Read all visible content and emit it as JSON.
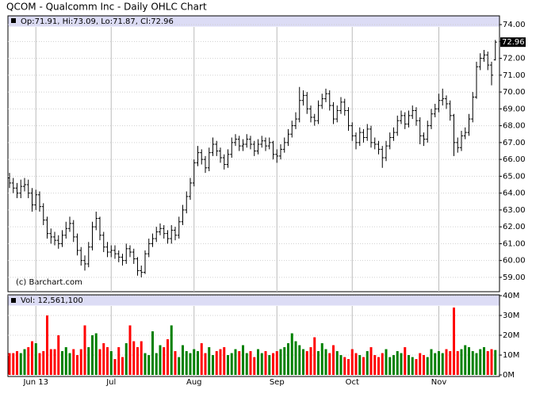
{
  "chart_data": {
    "type": "ohlc",
    "title": "QCOM - Qualcomm Inc - Daily OHLC Chart",
    "info": "Op:71.91, Hi:73.09, Lo:71.87, Cl:72.96",
    "watermark": "(c) Barchart.com",
    "bar_color": "#000000",
    "grid": true,
    "categories": [
      null,
      null,
      null,
      null,
      null,
      null,
      null,
      "Jun 13",
      null,
      null,
      null,
      null,
      null,
      null,
      null,
      null,
      null,
      null,
      null,
      null,
      null,
      null,
      null,
      null,
      null,
      null,
      null,
      "Jul",
      null,
      null,
      null,
      null,
      null,
      null,
      null,
      null,
      null,
      null,
      null,
      null,
      null,
      null,
      null,
      null,
      null,
      null,
      null,
      null,
      null,
      "Aug",
      null,
      null,
      null,
      null,
      null,
      null,
      null,
      null,
      null,
      null,
      null,
      null,
      null,
      null,
      null,
      null,
      null,
      null,
      null,
      null,
      null,
      "Sep",
      null,
      null,
      null,
      null,
      null,
      null,
      null,
      null,
      null,
      null,
      null,
      null,
      null,
      null,
      null,
      null,
      null,
      null,
      null,
      "Oct",
      null,
      null,
      null,
      null,
      null,
      null,
      null,
      null,
      null,
      null,
      null,
      null,
      null,
      null,
      null,
      null,
      null,
      null,
      null,
      null,
      null,
      null,
      "Nov",
      null,
      null,
      null,
      null,
      null,
      null,
      null,
      null,
      null,
      null,
      null,
      null,
      null,
      null,
      null
    ],
    "ohlc": [
      [
        64.9,
        65.2,
        64.3,
        64.6
      ],
      [
        64.6,
        64.9,
        64.0,
        64.3
      ],
      [
        64.3,
        64.6,
        63.7,
        64.0
      ],
      [
        64.0,
        64.8,
        63.7,
        64.4
      ],
      [
        64.4,
        64.9,
        64.1,
        64.5
      ],
      [
        64.5,
        64.8,
        63.7,
        64.0
      ],
      [
        64.0,
        64.3,
        62.9,
        63.3
      ],
      [
        63.3,
        64.2,
        63.0,
        63.9
      ],
      [
        63.9,
        64.1,
        62.9,
        63.2
      ],
      [
        63.2,
        63.4,
        62.1,
        62.4
      ],
      [
        62.4,
        62.6,
        61.3,
        61.6
      ],
      [
        61.6,
        61.9,
        61.0,
        61.4
      ],
      [
        61.4,
        61.7,
        60.9,
        61.2
      ],
      [
        61.2,
        61.5,
        60.7,
        61.0
      ],
      [
        61.0,
        61.8,
        60.8,
        61.5
      ],
      [
        61.5,
        62.3,
        61.3,
        61.9
      ],
      [
        61.9,
        62.6,
        61.7,
        62.2
      ],
      [
        62.2,
        62.4,
        61.1,
        61.4
      ],
      [
        61.4,
        61.6,
        60.3,
        60.6
      ],
      [
        60.6,
        60.8,
        59.7,
        60.0
      ],
      [
        60.0,
        60.3,
        59.4,
        59.8
      ],
      [
        59.8,
        61.1,
        59.6,
        60.8
      ],
      [
        60.8,
        62.3,
        60.6,
        62.0
      ],
      [
        62.0,
        62.9,
        61.8,
        62.5
      ],
      [
        62.5,
        62.6,
        61.2,
        61.5
      ],
      [
        61.5,
        61.7,
        60.5,
        60.8
      ],
      [
        60.8,
        61.1,
        60.2,
        60.5
      ],
      [
        60.5,
        60.9,
        60.2,
        60.6
      ],
      [
        60.6,
        60.9,
        60.1,
        60.4
      ],
      [
        60.4,
        60.6,
        59.9,
        60.2
      ],
      [
        60.2,
        60.4,
        59.7,
        60.0
      ],
      [
        60.0,
        61.0,
        59.8,
        60.7
      ],
      [
        60.7,
        60.9,
        60.2,
        60.5
      ],
      [
        60.5,
        60.7,
        59.8,
        60.1
      ],
      [
        60.1,
        60.2,
        59.1,
        59.4
      ],
      [
        59.4,
        59.7,
        59.0,
        59.3
      ],
      [
        59.3,
        60.6,
        59.2,
        60.4
      ],
      [
        60.4,
        61.3,
        60.2,
        61.0
      ],
      [
        61.0,
        61.6,
        60.8,
        61.3
      ],
      [
        61.3,
        62.0,
        61.1,
        61.7
      ],
      [
        61.7,
        62.2,
        61.5,
        61.9
      ],
      [
        61.9,
        62.1,
        61.3,
        61.6
      ],
      [
        61.6,
        61.8,
        61.0,
        61.3
      ],
      [
        61.3,
        62.1,
        61.0,
        61.8
      ],
      [
        61.8,
        62.0,
        61.2,
        61.5
      ],
      [
        61.5,
        62.6,
        61.3,
        62.3
      ],
      [
        62.3,
        63.3,
        62.1,
        63.0
      ],
      [
        63.0,
        64.1,
        62.8,
        63.8
      ],
      [
        63.8,
        64.9,
        63.6,
        64.6
      ],
      [
        64.6,
        66.0,
        64.4,
        65.8
      ],
      [
        65.8,
        66.8,
        65.6,
        66.4
      ],
      [
        66.4,
        66.6,
        65.7,
        66.0
      ],
      [
        66.0,
        66.2,
        65.2,
        65.5
      ],
      [
        65.5,
        66.7,
        65.3,
        66.4
      ],
      [
        66.4,
        67.3,
        66.2,
        66.9
      ],
      [
        66.9,
        67.1,
        66.2,
        66.5
      ],
      [
        66.5,
        66.7,
        65.8,
        66.1
      ],
      [
        66.1,
        66.3,
        65.4,
        65.7
      ],
      [
        65.7,
        66.6,
        65.5,
        66.3
      ],
      [
        66.3,
        67.3,
        66.1,
        67.0
      ],
      [
        67.0,
        67.5,
        66.8,
        67.2
      ],
      [
        67.2,
        67.4,
        66.5,
        66.8
      ],
      [
        66.8,
        67.2,
        66.5,
        66.9
      ],
      [
        66.9,
        67.5,
        66.7,
        67.2
      ],
      [
        67.2,
        67.4,
        66.6,
        66.9
      ],
      [
        66.9,
        67.1,
        66.2,
        66.5
      ],
      [
        66.5,
        67.2,
        66.3,
        66.9
      ],
      [
        66.9,
        67.4,
        66.7,
        67.1
      ],
      [
        67.1,
        67.3,
        66.5,
        66.8
      ],
      [
        66.8,
        67.3,
        66.6,
        67.0
      ],
      [
        67.0,
        67.1,
        66.0,
        66.3
      ],
      [
        66.3,
        66.6,
        65.8,
        66.2
      ],
      [
        66.2,
        66.9,
        66.0,
        66.6
      ],
      [
        66.6,
        67.3,
        66.4,
        67.0
      ],
      [
        67.0,
        67.8,
        66.8,
        67.5
      ],
      [
        67.5,
        68.3,
        67.3,
        68.0
      ],
      [
        68.0,
        68.8,
        67.8,
        68.4
      ],
      [
        68.4,
        70.3,
        68.2,
        69.5
      ],
      [
        69.5,
        70.1,
        69.2,
        69.8
      ],
      [
        69.8,
        70.0,
        68.7,
        69.0
      ],
      [
        69.0,
        69.2,
        68.2,
        68.5
      ],
      [
        68.5,
        68.7,
        68.0,
        68.3
      ],
      [
        68.3,
        69.5,
        68.1,
        69.2
      ],
      [
        69.2,
        69.9,
        69.0,
        69.6
      ],
      [
        69.6,
        70.2,
        69.4,
        69.9
      ],
      [
        69.9,
        70.1,
        68.9,
        69.2
      ],
      [
        69.2,
        69.4,
        68.1,
        68.4
      ],
      [
        68.4,
        69.2,
        68.2,
        68.9
      ],
      [
        68.9,
        69.7,
        68.7,
        69.4
      ],
      [
        69.4,
        69.6,
        68.6,
        68.9
      ],
      [
        68.9,
        69.1,
        67.7,
        68.0
      ],
      [
        68.0,
        68.2,
        67.1,
        67.4
      ],
      [
        67.4,
        67.6,
        66.6,
        67.0
      ],
      [
        67.0,
        67.9,
        66.8,
        67.6
      ],
      [
        67.6,
        67.8,
        67.0,
        67.3
      ],
      [
        67.3,
        68.1,
        67.1,
        67.8
      ],
      [
        67.8,
        68.0,
        66.7,
        67.0
      ],
      [
        67.0,
        67.3,
        66.6,
        66.9
      ],
      [
        66.9,
        67.1,
        66.3,
        66.6
      ],
      [
        66.6,
        66.8,
        65.5,
        66.1
      ],
      [
        66.1,
        67.1,
        65.9,
        66.8
      ],
      [
        66.8,
        67.6,
        66.6,
        67.3
      ],
      [
        67.3,
        67.9,
        67.1,
        67.6
      ],
      [
        67.6,
        68.6,
        67.4,
        68.3
      ],
      [
        68.3,
        68.9,
        68.1,
        68.6
      ],
      [
        68.6,
        68.8,
        67.8,
        68.1
      ],
      [
        68.1,
        68.9,
        67.9,
        68.6
      ],
      [
        68.6,
        69.2,
        68.4,
        68.9
      ],
      [
        68.9,
        69.1,
        68.0,
        68.3
      ],
      [
        68.3,
        68.5,
        66.9,
        67.4
      ],
      [
        67.4,
        67.6,
        66.8,
        67.2
      ],
      [
        67.2,
        68.3,
        67.0,
        68.0
      ],
      [
        68.0,
        69.0,
        67.8,
        68.7
      ],
      [
        68.7,
        69.3,
        68.5,
        69.0
      ],
      [
        69.0,
        69.9,
        68.8,
        69.5
      ],
      [
        69.5,
        70.2,
        69.2,
        69.6
      ],
      [
        69.6,
        69.8,
        69.0,
        69.3
      ],
      [
        69.3,
        69.5,
        68.3,
        68.6
      ],
      [
        68.6,
        68.7,
        66.2,
        67.0
      ],
      [
        67.0,
        67.3,
        66.4,
        66.7
      ],
      [
        66.7,
        67.7,
        66.5,
        67.4
      ],
      [
        67.4,
        67.9,
        67.2,
        67.6
      ],
      [
        67.6,
        68.7,
        67.4,
        68.4
      ],
      [
        68.4,
        70.0,
        68.2,
        69.7
      ],
      [
        69.7,
        71.8,
        69.6,
        71.5
      ],
      [
        71.5,
        72.3,
        71.3,
        72.0
      ],
      [
        72.0,
        72.5,
        71.8,
        72.2
      ],
      [
        72.2,
        72.4,
        71.3,
        71.6
      ],
      [
        71.6,
        71.8,
        70.4,
        71.0
      ],
      [
        71.91,
        73.09,
        71.87,
        72.96
      ]
    ],
    "ylim": [
      58.15,
      74.52
    ],
    "yticks": [
      {
        "value": 59,
        "label": "59.00"
      },
      {
        "value": 60,
        "label": "60.00"
      },
      {
        "value": 61,
        "label": "61.00"
      },
      {
        "value": 62,
        "label": "62.00"
      },
      {
        "value": 63,
        "label": "63.00"
      },
      {
        "value": 64,
        "label": "64.00"
      },
      {
        "value": 65,
        "label": "65.00"
      },
      {
        "value": 66,
        "label": "66.00"
      },
      {
        "value": 67,
        "label": "67.00"
      },
      {
        "value": 68,
        "label": "68.00"
      },
      {
        "value": 69,
        "label": "69.00"
      },
      {
        "value": 70,
        "label": "70.00"
      },
      {
        "value": 71,
        "label": "71.00"
      },
      {
        "value": 72,
        "label": "72.00"
      },
      {
        "value": 73,
        "label": "73.00"
      },
      {
        "value": 74,
        "label": "74.00"
      }
    ],
    "volume": {
      "label": "Vol: 12,561,100",
      "up_color": "#008000",
      "down_color": "#ff0000",
      "values": [
        11,
        11,
        12,
        11,
        13,
        14,
        17,
        16,
        11,
        12,
        30,
        13,
        13,
        20,
        12,
        14,
        11,
        13,
        10,
        13,
        25,
        14,
        20,
        21,
        13,
        16,
        14,
        12,
        8,
        14,
        9,
        16,
        25,
        17,
        14,
        17,
        11,
        10,
        22,
        11,
        15,
        14,
        18,
        25,
        12,
        9,
        15,
        12,
        11,
        13,
        12,
        16,
        11,
        14,
        10,
        12,
        13,
        14,
        10,
        11,
        13,
        12,
        15,
        11,
        12,
        9,
        13,
        11,
        12,
        10,
        11,
        12,
        13,
        14,
        16,
        21,
        17,
        15,
        13,
        12,
        14,
        19,
        12,
        16,
        13,
        11,
        15,
        12,
        10,
        9,
        8,
        13,
        11,
        10,
        9,
        12,
        14,
        10,
        9,
        11,
        13,
        9,
        10,
        12,
        11,
        14,
        10,
        9,
        8,
        11,
        10,
        9,
        13,
        11,
        12,
        11,
        13,
        12,
        34,
        12,
        13,
        15,
        14,
        12,
        11,
        13,
        14,
        12,
        13,
        12.5611
      ],
      "ylim": [
        0,
        40
      ],
      "yticks": [
        {
          "value": 0,
          "label": "0M"
        },
        {
          "value": 10,
          "label": "10M"
        },
        {
          "value": 20,
          "label": "20M"
        },
        {
          "value": 30,
          "label": "30M"
        },
        {
          "value": 40,
          "label": "40M"
        }
      ]
    }
  }
}
